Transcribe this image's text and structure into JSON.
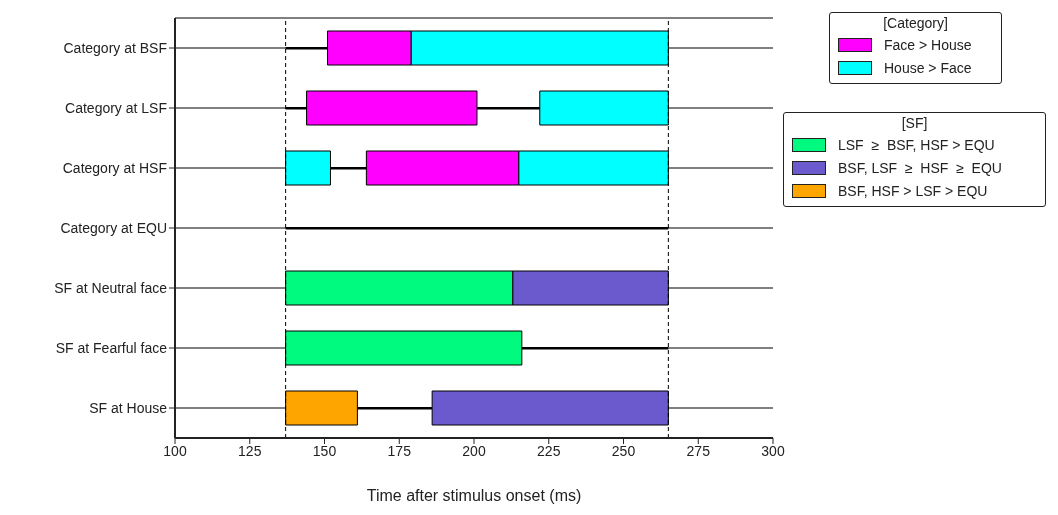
{
  "chart_data": {
    "type": "bar",
    "orientation": "horizontal",
    "categories": [
      "Category at BSF",
      "Category at LSF",
      "Category at HSF",
      "Category at EQU",
      "SF at Neutral face",
      "SF at Fearful face",
      "SF at House"
    ],
    "series": [
      {
        "color": "#000000",
        "base": [
          137,
          137,
          152,
          137,
          null,
          216,
          161
        ],
        "values": [
          14,
          7,
          12,
          128,
          null,
          49,
          25
        ]
      },
      {
        "color": "#000000",
        "base": [
          null,
          201,
          null,
          null,
          null,
          null,
          null
        ],
        "values": [
          null,
          21,
          null,
          null,
          null,
          null,
          null
        ]
      },
      {
        "name": "Face > House",
        "color": "#ff00ff",
        "base": [
          151,
          144,
          164,
          null,
          null,
          null,
          null
        ],
        "values": [
          28,
          57,
          51,
          null,
          null,
          null,
          null
        ]
      },
      {
        "name": "House > Face",
        "color": "#00ffff",
        "base": [
          179,
          222,
          215,
          null,
          null,
          null,
          null
        ],
        "values": [
          86,
          43,
          50,
          null,
          null,
          null,
          null
        ]
      },
      {
        "color": "#00ffff",
        "base": [
          null,
          null,
          137,
          null,
          null,
          null,
          null
        ],
        "values": [
          null,
          null,
          15,
          null,
          null,
          null,
          null
        ]
      },
      {
        "name": "LSF  ≥  BSF, HSF > EQU",
        "color": "#00fa7f",
        "base": [
          null,
          null,
          null,
          null,
          137,
          137,
          null
        ],
        "values": [
          null,
          null,
          null,
          null,
          76,
          79,
          null
        ]
      },
      {
        "name": "BSF, LSF  ≥  HSF  ≥  EQU",
        "color": "#6a5acd",
        "base": [
          null,
          null,
          null,
          null,
          213,
          null,
          186
        ],
        "values": [
          null,
          null,
          null,
          null,
          52,
          null,
          79
        ]
      },
      {
        "name": "BSF, HSF > LSF > EQU",
        "color": "#ffa500",
        "base": [
          null,
          null,
          null,
          null,
          null,
          null,
          137
        ],
        "values": [
          null,
          null,
          null,
          null,
          null,
          null,
          24
        ]
      }
    ],
    "xlabel": "Time after stimulus onset (ms)",
    "xlim": [
      100,
      300
    ],
    "xticks": [
      100,
      125,
      150,
      175,
      200,
      225,
      250,
      275,
      300
    ],
    "ref_lines": [
      {
        "axis": "x",
        "value": 137,
        "line_style": "dashed"
      },
      {
        "axis": "x",
        "value": 265,
        "line_style": "dashed"
      }
    ],
    "grid": "y",
    "legend": "top right",
    "legend_title": "[Category]",
    "annotations": [
      "[SF]"
    ]
  }
}
